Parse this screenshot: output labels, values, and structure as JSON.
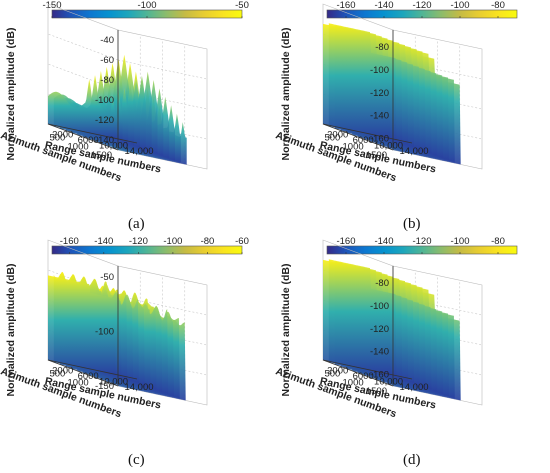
{
  "chart_data": [
    {
      "type": "surface3d",
      "panel": "(a)",
      "zlabel": "Normalized amplitude (dB)",
      "xlabel": "Range sample numbers",
      "ylabel": "Azimuth sample numbers",
      "colormap": "parula",
      "colorbar": {
        "range": [
          -150,
          -50
        ],
        "ticks": [
          "-150",
          "-100",
          "-50"
        ]
      },
      "zlim": [
        -150,
        -30
      ],
      "zticks": [
        "-40",
        "-60",
        "-80",
        "-100",
        "-120",
        "-140"
      ],
      "xticks": [
        "2000",
        "6000",
        "10,000",
        "14,000"
      ],
      "yticks": [
        "1500",
        "1000",
        "500"
      ],
      "surface": {
        "base": -150,
        "plateau": -122,
        "peaks": [
          {
            "x": 6500,
            "level": -58
          },
          {
            "x": 10200,
            "level": -70
          }
        ]
      }
    },
    {
      "type": "surface3d",
      "panel": "(b)",
      "zlabel": "Normalized amplitude (dB)",
      "xlabel": "Range sample numbers",
      "ylabel": "Azimuth sample numbers",
      "colormap": "parula",
      "colorbar": {
        "range": [
          -170,
          -70
        ],
        "ticks": [
          "-160",
          "-140",
          "-120",
          "-100",
          "-80"
        ]
      },
      "zlim": [
        -170,
        -65
      ],
      "zticks": [
        "-80",
        "-100",
        "-120",
        "-140",
        "-160"
      ],
      "xticks": [
        "2000",
        "6000",
        "10,000",
        "14,000"
      ],
      "yticks": [
        "1500",
        "1000",
        "500"
      ],
      "surface": {
        "base": -170,
        "walls": [
          {
            "x": [
              0,
              6500
            ],
            "level": -80
          },
          {
            "x": [
              6500,
              10500
            ],
            "level": -98
          }
        ]
      }
    },
    {
      "type": "surface3d",
      "panel": "(c)",
      "zlabel": "Normalized amplitude (dB)",
      "xlabel": "Range sample numbers",
      "ylabel": "Azimuth sample numbers",
      "colormap": "parula",
      "colorbar": {
        "range": [
          -170,
          -60
        ],
        "ticks": [
          "-160",
          "-140",
          "-120",
          "-100",
          "-80",
          "-60"
        ]
      },
      "zlim": [
        -150,
        -40
      ],
      "zticks": [
        "-50",
        "-100",
        "-150"
      ],
      "xticks": [
        "2000",
        "6000",
        "10,000",
        "14,000"
      ],
      "yticks": [
        "1000",
        "500"
      ],
      "surface": {
        "base": -150,
        "walls": [
          {
            "x": [
              0,
              6500
            ],
            "level": -70
          },
          {
            "x": [
              6500,
              10500
            ],
            "level": -78
          }
        ],
        "noisy": true
      }
    },
    {
      "type": "surface3d",
      "panel": "(d)",
      "zlabel": "Normalized amplitude (dB)",
      "xlabel": "Range sample numbers",
      "ylabel": "Azimuth sample numbers",
      "colormap": "parula",
      "colorbar": {
        "range": [
          -170,
          -70
        ],
        "ticks": [
          "-160",
          "-140",
          "-120",
          "-100",
          "-80"
        ]
      },
      "zlim": [
        -170,
        -65
      ],
      "zticks": [
        "-80",
        "-100",
        "-120",
        "-140",
        "-160"
      ],
      "xticks": [
        "2000",
        "6000",
        "10,000",
        "14,000"
      ],
      "yticks": [
        "1500",
        "1000",
        "500"
      ],
      "surface": {
        "base": -170,
        "walls": [
          {
            "x": [
              0,
              6500
            ],
            "level": -80
          },
          {
            "x": [
              6500,
              10500
            ],
            "level": -98
          }
        ]
      }
    }
  ]
}
